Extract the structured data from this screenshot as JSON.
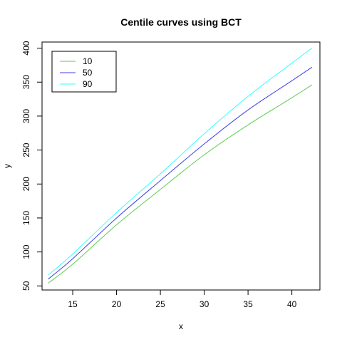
{
  "chart_data": {
    "type": "line",
    "title": "Centile curves using BCT",
    "xlabel": "x",
    "ylabel": "y",
    "xlim": [
      11.5,
      43.2
    ],
    "ylim": [
      44,
      409
    ],
    "xticks": [
      15,
      20,
      25,
      30,
      35,
      40
    ],
    "yticks": [
      50,
      100,
      150,
      200,
      250,
      300,
      350,
      400
    ],
    "grid": false,
    "legend": "top-left",
    "x": [
      12.2,
      15,
      20,
      25,
      30,
      35,
      40,
      42.3
    ],
    "series": [
      {
        "name": "10",
        "color": "#5ecc4f",
        "values": [
          54,
          82,
          140,
          192,
          243,
          287,
          327,
          346
        ]
      },
      {
        "name": "50",
        "color": "#4040e8",
        "values": [
          60,
          90,
          150,
          205,
          259,
          309,
          352,
          372
        ]
      },
      {
        "name": "90",
        "color": "#33ffff",
        "values": [
          66,
          97,
          158,
          215,
          274,
          329,
          378,
          400
        ]
      }
    ]
  }
}
